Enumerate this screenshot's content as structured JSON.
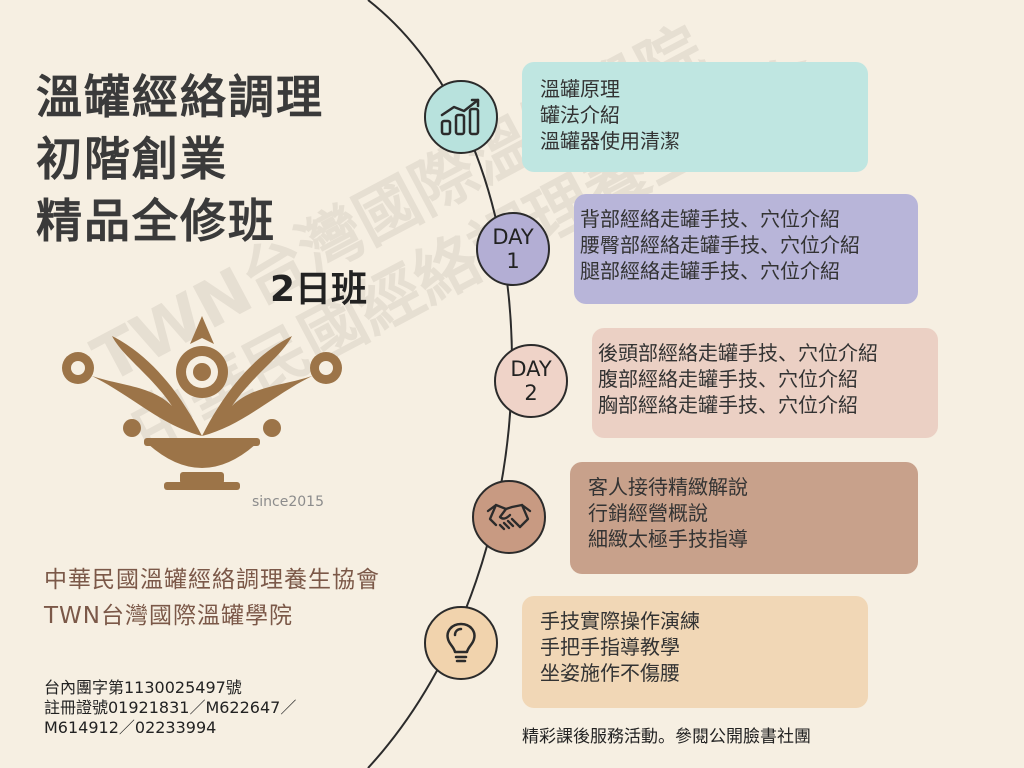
{
  "title": {
    "line1": "溫罐經絡調理",
    "line2": "初階創業",
    "line3": "精品全修班"
  },
  "subtitle": "2日班",
  "since": "since2015",
  "org": {
    "line1": "中華民國溫罐經絡調理養生協會",
    "line2": "TWN台灣國際溫罐學院"
  },
  "registration": {
    "line1": "台內團字第1130025497號",
    "line2": "註冊證號01921831／M622647／",
    "line3": "M614912／02233994"
  },
  "watermark": {
    "line1": "TWN台灣國際溫罐學院",
    "line2": "中華民國經絡調理養生協會"
  },
  "timeline": [
    {
      "node_icon": "bar-chart-icon",
      "node_text": [],
      "node_color": "#b8e2dd",
      "card_color": "#bfe6e1",
      "items": [
        "溫罐原理",
        "罐法介紹",
        "溫罐器使用清潔"
      ]
    },
    {
      "node_icon": "",
      "node_text": [
        "DAY",
        "1"
      ],
      "node_color": "#b3aed4",
      "card_color": "#b8b5d9",
      "items": [
        "背部經絡走罐手技、穴位介紹",
        "腰臀部經絡走罐手技、穴位介紹",
        "腿部經絡走罐手技、穴位介紹"
      ]
    },
    {
      "node_icon": "",
      "node_text": [
        "DAY",
        "2"
      ],
      "node_color": "#efd3c8",
      "card_color": "#ebd0c4",
      "items": [
        "後頭部經絡走罐手技、穴位介紹",
        "腹部經絡走罐手技、穴位介紹",
        "胸部經絡走罐手技、穴位介紹"
      ]
    },
    {
      "node_icon": "handshake-icon",
      "node_text": [],
      "node_color": "#c89a82",
      "card_color": "#c8a18b",
      "items": [
        "客人接待精緻解說",
        "行銷經營概說",
        "細緻太極手技指導"
      ]
    },
    {
      "node_icon": "lightbulb-icon",
      "node_text": [],
      "node_color": "#f1d3ad",
      "card_color": "#f1d7b6",
      "items": [
        "手技實際操作演練",
        "手把手指導教學",
        "坐姿施作不傷腰"
      ]
    }
  ],
  "footer": "精彩課後服務活動。參閱公開臉書社團"
}
